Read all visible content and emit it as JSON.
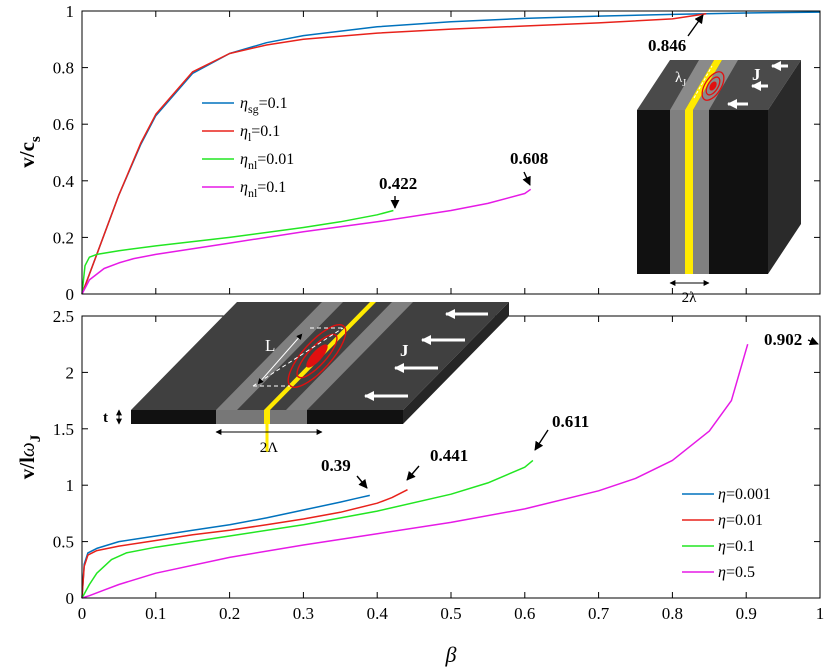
{
  "chart_data": [
    {
      "type": "line",
      "panel": "top",
      "xlabel": "",
      "ylabel": "v/c_s",
      "ylabel_main": "v/c",
      "ylabel_sub": "s",
      "xlim": [
        0,
        1
      ],
      "ylim": [
        0,
        1
      ],
      "xticks": [
        0,
        0.1,
        0.2,
        0.3,
        0.4,
        0.5,
        0.6,
        0.7,
        0.8,
        0.9,
        1
      ],
      "yticks": [
        0,
        0.2,
        0.4,
        0.6,
        0.8,
        1
      ],
      "ytick_labels": [
        "0",
        "0.2",
        "0.4",
        "0.6",
        "0.8",
        "1"
      ],
      "legend_position": "upper-left",
      "series": [
        {
          "name": "η_sg=0.1",
          "symbol": "η",
          "sub": "sg",
          "rest": "=0.1",
          "color": "#0072BD",
          "x": [
            0,
            0.02,
            0.05,
            0.08,
            0.1,
            0.15,
            0.2,
            0.25,
            0.3,
            0.4,
            0.5,
            0.6,
            0.7,
            0.8,
            0.9,
            1.0
          ],
          "y": [
            0,
            0.14,
            0.35,
            0.53,
            0.63,
            0.78,
            0.85,
            0.888,
            0.913,
            0.944,
            0.962,
            0.974,
            0.982,
            0.988,
            0.993,
            0.996
          ]
        },
        {
          "name": "η_l=0.1",
          "symbol": "η",
          "sub": "l",
          "rest": "=0.1",
          "color": "#E8221B",
          "x": [
            0,
            0.02,
            0.05,
            0.08,
            0.1,
            0.15,
            0.2,
            0.25,
            0.3,
            0.4,
            0.5,
            0.6,
            0.7,
            0.8,
            0.846
          ],
          "y": [
            0,
            0.14,
            0.35,
            0.535,
            0.635,
            0.785,
            0.85,
            0.88,
            0.9,
            0.922,
            0.936,
            0.947,
            0.958,
            0.972,
            0.99
          ]
        },
        {
          "name": "η_nl=0.01",
          "symbol": "η",
          "sub": "nl",
          "rest": "=0.01",
          "color": "#22E622",
          "x": [
            0,
            0.004,
            0.01,
            0.02,
            0.05,
            0.1,
            0.2,
            0.3,
            0.35,
            0.4,
            0.422
          ],
          "y": [
            0,
            0.1,
            0.13,
            0.14,
            0.153,
            0.17,
            0.2,
            0.235,
            0.255,
            0.28,
            0.295
          ]
        },
        {
          "name": "η_nl=0.1",
          "symbol": "η",
          "sub": "nl",
          "rest": "=0.1",
          "color": "#E61AE6",
          "x": [
            0,
            0.01,
            0.03,
            0.05,
            0.07,
            0.1,
            0.2,
            0.3,
            0.4,
            0.5,
            0.55,
            0.6,
            0.608
          ],
          "y": [
            0,
            0.05,
            0.09,
            0.11,
            0.125,
            0.14,
            0.18,
            0.22,
            0.255,
            0.295,
            0.32,
            0.355,
            0.37
          ]
        }
      ],
      "annotations": [
        {
          "text": "0.846",
          "x": 0.846,
          "y": 0.99
        },
        {
          "text": "0.608",
          "x": 0.608,
          "y": 0.37
        },
        {
          "text": "0.422",
          "x": 0.422,
          "y": 0.295
        }
      ],
      "inset": {
        "labels": [
          "λ_J",
          "J",
          "2λ"
        ],
        "lambda": "λ",
        "lambda_sub": "J",
        "current": "J",
        "width": "2λ"
      }
    },
    {
      "type": "line",
      "panel": "bottom",
      "xlabel": "β",
      "ylabel": "v/lω_J",
      "ylabel_main": "v/l",
      "ylabel_omega": "ω",
      "ylabel_sub": "J",
      "xlim": [
        0,
        1
      ],
      "ylim": [
        0,
        2.5
      ],
      "xticks": [
        0,
        0.1,
        0.2,
        0.3,
        0.4,
        0.5,
        0.6,
        0.7,
        0.8,
        0.9,
        1
      ],
      "xtick_labels": [
        "0",
        "0.1",
        "0.2",
        "0.3",
        "0.4",
        "0.5",
        "0.6",
        "0.7",
        "0.8",
        "0.9",
        "1"
      ],
      "yticks": [
        0,
        0.5,
        1,
        1.5,
        2,
        2.5
      ],
      "ytick_labels": [
        "0",
        "0.5",
        "1",
        "1.5",
        "2",
        "2.5"
      ],
      "legend_position": "lower-right",
      "series": [
        {
          "name": "η=0.001",
          "symbol": "η",
          "rest": "=0.001",
          "color": "#0072BD",
          "x": [
            0,
            0.003,
            0.008,
            0.02,
            0.05,
            0.1,
            0.15,
            0.2,
            0.25,
            0.3,
            0.35,
            0.37,
            0.39
          ],
          "y": [
            0,
            0.3,
            0.4,
            0.44,
            0.5,
            0.55,
            0.6,
            0.65,
            0.71,
            0.78,
            0.85,
            0.88,
            0.91
          ]
        },
        {
          "name": "η=0.01",
          "symbol": "η",
          "rest": "=0.01",
          "color": "#E8221B",
          "x": [
            0,
            0.003,
            0.008,
            0.02,
            0.05,
            0.1,
            0.15,
            0.2,
            0.25,
            0.3,
            0.35,
            0.4,
            0.42,
            0.441
          ],
          "y": [
            0,
            0.28,
            0.38,
            0.42,
            0.46,
            0.51,
            0.56,
            0.6,
            0.65,
            0.7,
            0.76,
            0.84,
            0.89,
            0.96
          ]
        },
        {
          "name": "η=0.1",
          "symbol": "η",
          "rest": "=0.1",
          "color": "#22E622",
          "x": [
            0,
            0.01,
            0.02,
            0.04,
            0.06,
            0.1,
            0.2,
            0.3,
            0.4,
            0.5,
            0.55,
            0.6,
            0.611
          ],
          "y": [
            0,
            0.12,
            0.22,
            0.34,
            0.4,
            0.45,
            0.55,
            0.65,
            0.77,
            0.92,
            1.02,
            1.16,
            1.22
          ]
        },
        {
          "name": "η=0.5",
          "symbol": "η",
          "rest": "=0.5",
          "color": "#E61AE6",
          "x": [
            0,
            0.01,
            0.03,
            0.05,
            0.1,
            0.2,
            0.3,
            0.4,
            0.5,
            0.6,
            0.7,
            0.75,
            0.8,
            0.85,
            0.88,
            0.902
          ],
          "y": [
            0,
            0.02,
            0.07,
            0.12,
            0.22,
            0.36,
            0.47,
            0.57,
            0.67,
            0.79,
            0.95,
            1.06,
            1.22,
            1.48,
            1.75,
            2.25
          ]
        }
      ],
      "annotations": [
        {
          "text": "0.902",
          "x": 0.902,
          "y": 2.25
        },
        {
          "text": "0.611",
          "x": 0.611,
          "y": 1.22
        },
        {
          "text": "0.441",
          "x": 0.441,
          "y": 0.96
        },
        {
          "text": "0.39",
          "x": 0.39,
          "y": 0.91
        }
      ],
      "inset": {
        "labels": [
          "L",
          "J",
          "t",
          "2Λ"
        ],
        "length": "L",
        "current": "J",
        "thickness": "t",
        "width": "2Λ"
      }
    }
  ]
}
